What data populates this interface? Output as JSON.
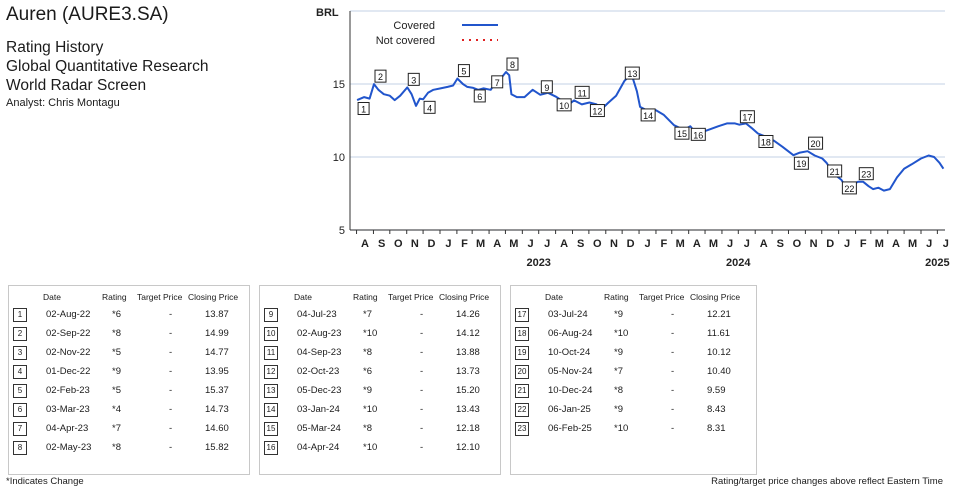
{
  "header": {
    "company": "Auren (AURE3.SA)",
    "lines": [
      "Rating History",
      "Global Quantitative Research",
      "World Radar Screen"
    ],
    "analyst": "Analyst: Chris Montagu"
  },
  "chart_data": {
    "type": "line",
    "ylabel": "BRL",
    "yticks": [
      5,
      10,
      15
    ],
    "ylim": [
      5,
      20
    ],
    "x_month_labels": [
      "A",
      "S",
      "O",
      "N",
      "D",
      "J",
      "F",
      "M",
      "A",
      "M",
      "J",
      "J",
      "A",
      "S",
      "O",
      "N",
      "D",
      "J",
      "F",
      "M",
      "A",
      "M",
      "J",
      "J",
      "A",
      "S",
      "O",
      "N",
      "D",
      "J",
      "F",
      "M",
      "A",
      "M",
      "J",
      "J"
    ],
    "x_year_labels": [
      "2023",
      "2024",
      "2025"
    ],
    "legend": [
      {
        "label": "Covered",
        "color": "#2155cc",
        "style": "solid"
      },
      {
        "label": "Not covered",
        "color": "#e02020",
        "style": "dotted"
      }
    ],
    "series": [
      {
        "name": "Covered",
        "color": "#2155cc",
        "points": [
          [
            "2022-08-02",
            13.9
          ],
          [
            "2022-08-15",
            14.1
          ],
          [
            "2022-08-25",
            14.0
          ],
          [
            "2022-09-02",
            14.99
          ],
          [
            "2022-09-10",
            14.6
          ],
          [
            "2022-09-20",
            14.3
          ],
          [
            "2022-10-01",
            14.2
          ],
          [
            "2022-10-10",
            13.9
          ],
          [
            "2022-10-20",
            14.2
          ],
          [
            "2022-11-02",
            14.77
          ],
          [
            "2022-11-10",
            14.3
          ],
          [
            "2022-11-18",
            13.5
          ],
          [
            "2022-11-25",
            14.0
          ],
          [
            "2022-12-01",
            13.95
          ],
          [
            "2022-12-10",
            14.4
          ],
          [
            "2022-12-20",
            14.6
          ],
          [
            "2023-01-02",
            14.7
          ],
          [
            "2023-01-15",
            14.8
          ],
          [
            "2023-01-25",
            14.9
          ],
          [
            "2023-02-02",
            15.37
          ],
          [
            "2023-02-12",
            15.0
          ],
          [
            "2023-02-20",
            14.8
          ],
          [
            "2023-03-03",
            14.73
          ],
          [
            "2023-03-12",
            14.6
          ],
          [
            "2023-03-22",
            14.7
          ],
          [
            "2023-04-04",
            14.6
          ],
          [
            "2023-04-14",
            15.2
          ],
          [
            "2023-04-25",
            15.5
          ],
          [
            "2023-05-02",
            15.82
          ],
          [
            "2023-05-08",
            15.6
          ],
          [
            "2023-05-12",
            14.3
          ],
          [
            "2023-05-22",
            14.1
          ],
          [
            "2023-06-05",
            14.1
          ],
          [
            "2023-06-20",
            14.6
          ],
          [
            "2023-07-04",
            14.26
          ],
          [
            "2023-07-18",
            14.4
          ],
          [
            "2023-08-02",
            14.12
          ],
          [
            "2023-08-15",
            13.8
          ],
          [
            "2023-08-25",
            13.6
          ],
          [
            "2023-09-04",
            13.88
          ],
          [
            "2023-09-18",
            13.6
          ],
          [
            "2023-10-02",
            13.73
          ],
          [
            "2023-10-15",
            13.6
          ],
          [
            "2023-10-25",
            13.3
          ],
          [
            "2023-11-05",
            13.7
          ],
          [
            "2023-11-20",
            14.2
          ],
          [
            "2023-12-05",
            15.2
          ],
          [
            "2023-12-18",
            15.7
          ],
          [
            "2023-12-28",
            14.5
          ],
          [
            "2024-01-03",
            13.43
          ],
          [
            "2024-01-15",
            13.2
          ],
          [
            "2024-02-01",
            13.2
          ],
          [
            "2024-02-15",
            12.9
          ],
          [
            "2024-03-05",
            12.18
          ],
          [
            "2024-03-15",
            12.0
          ],
          [
            "2024-03-25",
            11.9
          ],
          [
            "2024-04-04",
            12.1
          ],
          [
            "2024-04-15",
            11.6
          ],
          [
            "2024-04-25",
            11.7
          ],
          [
            "2024-05-10",
            11.9
          ],
          [
            "2024-05-25",
            12.1
          ],
          [
            "2024-06-10",
            12.3
          ],
          [
            "2024-06-25",
            12.3
          ],
          [
            "2024-07-03",
            12.21
          ],
          [
            "2024-07-15",
            12.3
          ],
          [
            "2024-07-25",
            12.0
          ],
          [
            "2024-08-06",
            11.61
          ],
          [
            "2024-08-20",
            11.4
          ],
          [
            "2024-09-05",
            11.1
          ],
          [
            "2024-09-20",
            10.7
          ],
          [
            "2024-10-10",
            10.12
          ],
          [
            "2024-10-22",
            10.3
          ],
          [
            "2024-11-05",
            10.4
          ],
          [
            "2024-11-18",
            10.1
          ],
          [
            "2024-12-02",
            9.9
          ],
          [
            "2024-12-10",
            9.59
          ],
          [
            "2024-12-20",
            9.0
          ],
          [
            "2024-12-28",
            8.7
          ],
          [
            "2025-01-06",
            8.43
          ],
          [
            "2025-01-15",
            7.9
          ],
          [
            "2025-01-25",
            8.1
          ],
          [
            "2025-02-06",
            8.31
          ],
          [
            "2025-02-15",
            8.3
          ],
          [
            "2025-02-25",
            8.0
          ],
          [
            "2025-03-05",
            7.8
          ],
          [
            "2025-03-15",
            7.9
          ],
          [
            "2025-03-25",
            7.7
          ],
          [
            "2025-04-05",
            7.8
          ],
          [
            "2025-04-18",
            8.6
          ],
          [
            "2025-05-01",
            9.2
          ],
          [
            "2025-05-15",
            9.5
          ],
          [
            "2025-06-01",
            9.9
          ],
          [
            "2025-06-15",
            10.1
          ],
          [
            "2025-06-25",
            10.0
          ],
          [
            "2025-07-05",
            9.6
          ],
          [
            "2025-07-12",
            9.2
          ]
        ]
      }
    ],
    "markers": [
      {
        "n": "1",
        "date": "2022-08-02",
        "rating": "*6",
        "target": "-",
        "close": "13.87"
      },
      {
        "n": "2",
        "date": "2022-09-02",
        "rating": "*8",
        "target": "-",
        "close": "14.99"
      },
      {
        "n": "3",
        "date": "2022-11-02",
        "rating": "*5",
        "target": "-",
        "close": "14.77"
      },
      {
        "n": "4",
        "date": "2022-12-01",
        "rating": "*9",
        "target": "-",
        "close": "13.95"
      },
      {
        "n": "5",
        "date": "2023-02-02",
        "rating": "*5",
        "target": "-",
        "close": "15.37"
      },
      {
        "n": "6",
        "date": "2023-03-03",
        "rating": "*4",
        "target": "-",
        "close": "14.73"
      },
      {
        "n": "7",
        "date": "2023-04-04",
        "rating": "*7",
        "target": "-",
        "close": "14.60"
      },
      {
        "n": "8",
        "date": "2023-05-02",
        "rating": "*8",
        "target": "-",
        "close": "15.82"
      },
      {
        "n": "9",
        "date": "2023-07-04",
        "rating": "*7",
        "target": "-",
        "close": "14.26"
      },
      {
        "n": "10",
        "date": "2023-08-02",
        "rating": "*10",
        "target": "-",
        "close": "14.12"
      },
      {
        "n": "11",
        "date": "2023-09-04",
        "rating": "*8",
        "target": "-",
        "close": "13.88"
      },
      {
        "n": "12",
        "date": "2023-10-02",
        "rating": "*6",
        "target": "-",
        "close": "13.73"
      },
      {
        "n": "13",
        "date": "2023-12-05",
        "rating": "*9",
        "target": "-",
        "close": "15.20"
      },
      {
        "n": "14",
        "date": "2024-01-03",
        "rating": "*10",
        "target": "-",
        "close": "13.43"
      },
      {
        "n": "15",
        "date": "2024-03-05",
        "rating": "*8",
        "target": "-",
        "close": "12.18"
      },
      {
        "n": "16",
        "date": "2024-04-04",
        "rating": "*10",
        "target": "-",
        "close": "12.10"
      },
      {
        "n": "17",
        "date": "2024-07-03",
        "rating": "*9",
        "target": "-",
        "close": "12.21"
      },
      {
        "n": "18",
        "date": "2024-08-06",
        "rating": "*10",
        "target": "-",
        "close": "11.61"
      },
      {
        "n": "19",
        "date": "2024-10-10",
        "rating": "*9",
        "target": "-",
        "close": "10.12"
      },
      {
        "n": "20",
        "date": "2024-11-05",
        "rating": "*7",
        "target": "-",
        "close": "10.40"
      },
      {
        "n": "21",
        "date": "2024-12-10",
        "rating": "*8",
        "target": "-",
        "close": "9.59"
      },
      {
        "n": "22",
        "date": "2025-01-06",
        "rating": "*9",
        "target": "-",
        "close": "8.43"
      },
      {
        "n": "23",
        "date": "2025-02-06",
        "rating": "*10",
        "target": "-",
        "close": "8.31"
      }
    ]
  },
  "table": {
    "headers": {
      "date": "Date",
      "rating": "Rating",
      "target": "Target Price",
      "close": "Closing Price"
    },
    "rows": [
      {
        "n": "1",
        "date": "02-Aug-22",
        "rating": "*6",
        "target": "-",
        "close": "13.87"
      },
      {
        "n": "2",
        "date": "02-Sep-22",
        "rating": "*8",
        "target": "-",
        "close": "14.99"
      },
      {
        "n": "3",
        "date": "02-Nov-22",
        "rating": "*5",
        "target": "-",
        "close": "14.77"
      },
      {
        "n": "4",
        "date": "01-Dec-22",
        "rating": "*9",
        "target": "-",
        "close": "13.95"
      },
      {
        "n": "5",
        "date": "02-Feb-23",
        "rating": "*5",
        "target": "-",
        "close": "15.37"
      },
      {
        "n": "6",
        "date": "03-Mar-23",
        "rating": "*4",
        "target": "-",
        "close": "14.73"
      },
      {
        "n": "7",
        "date": "04-Apr-23",
        "rating": "*7",
        "target": "-",
        "close": "14.60"
      },
      {
        "n": "8",
        "date": "02-May-23",
        "rating": "*8",
        "target": "-",
        "close": "15.82"
      },
      {
        "n": "9",
        "date": "04-Jul-23",
        "rating": "*7",
        "target": "-",
        "close": "14.26"
      },
      {
        "n": "10",
        "date": "02-Aug-23",
        "rating": "*10",
        "target": "-",
        "close": "14.12"
      },
      {
        "n": "11",
        "date": "04-Sep-23",
        "rating": "*8",
        "target": "-",
        "close": "13.88"
      },
      {
        "n": "12",
        "date": "02-Oct-23",
        "rating": "*6",
        "target": "-",
        "close": "13.73"
      },
      {
        "n": "13",
        "date": "05-Dec-23",
        "rating": "*9",
        "target": "-",
        "close": "15.20"
      },
      {
        "n": "14",
        "date": "03-Jan-24",
        "rating": "*10",
        "target": "-",
        "close": "13.43"
      },
      {
        "n": "15",
        "date": "05-Mar-24",
        "rating": "*8",
        "target": "-",
        "close": "12.18"
      },
      {
        "n": "16",
        "date": "04-Apr-24",
        "rating": "*10",
        "target": "-",
        "close": "12.10"
      },
      {
        "n": "17",
        "date": "03-Jul-24",
        "rating": "*9",
        "target": "-",
        "close": "12.21"
      },
      {
        "n": "18",
        "date": "06-Aug-24",
        "rating": "*10",
        "target": "-",
        "close": "11.61"
      },
      {
        "n": "19",
        "date": "10-Oct-24",
        "rating": "*9",
        "target": "-",
        "close": "10.12"
      },
      {
        "n": "20",
        "date": "05-Nov-24",
        "rating": "*7",
        "target": "-",
        "close": "10.40"
      },
      {
        "n": "21",
        "date": "10-Dec-24",
        "rating": "*8",
        "target": "-",
        "close": "9.59"
      },
      {
        "n": "22",
        "date": "06-Jan-25",
        "rating": "*9",
        "target": "-",
        "close": "8.43"
      },
      {
        "n": "23",
        "date": "06-Feb-25",
        "rating": "*10",
        "target": "-",
        "close": "8.31"
      }
    ]
  },
  "footer": {
    "left": "*Indicates Change",
    "right": "Rating/target price changes above reflect Eastern Time"
  }
}
